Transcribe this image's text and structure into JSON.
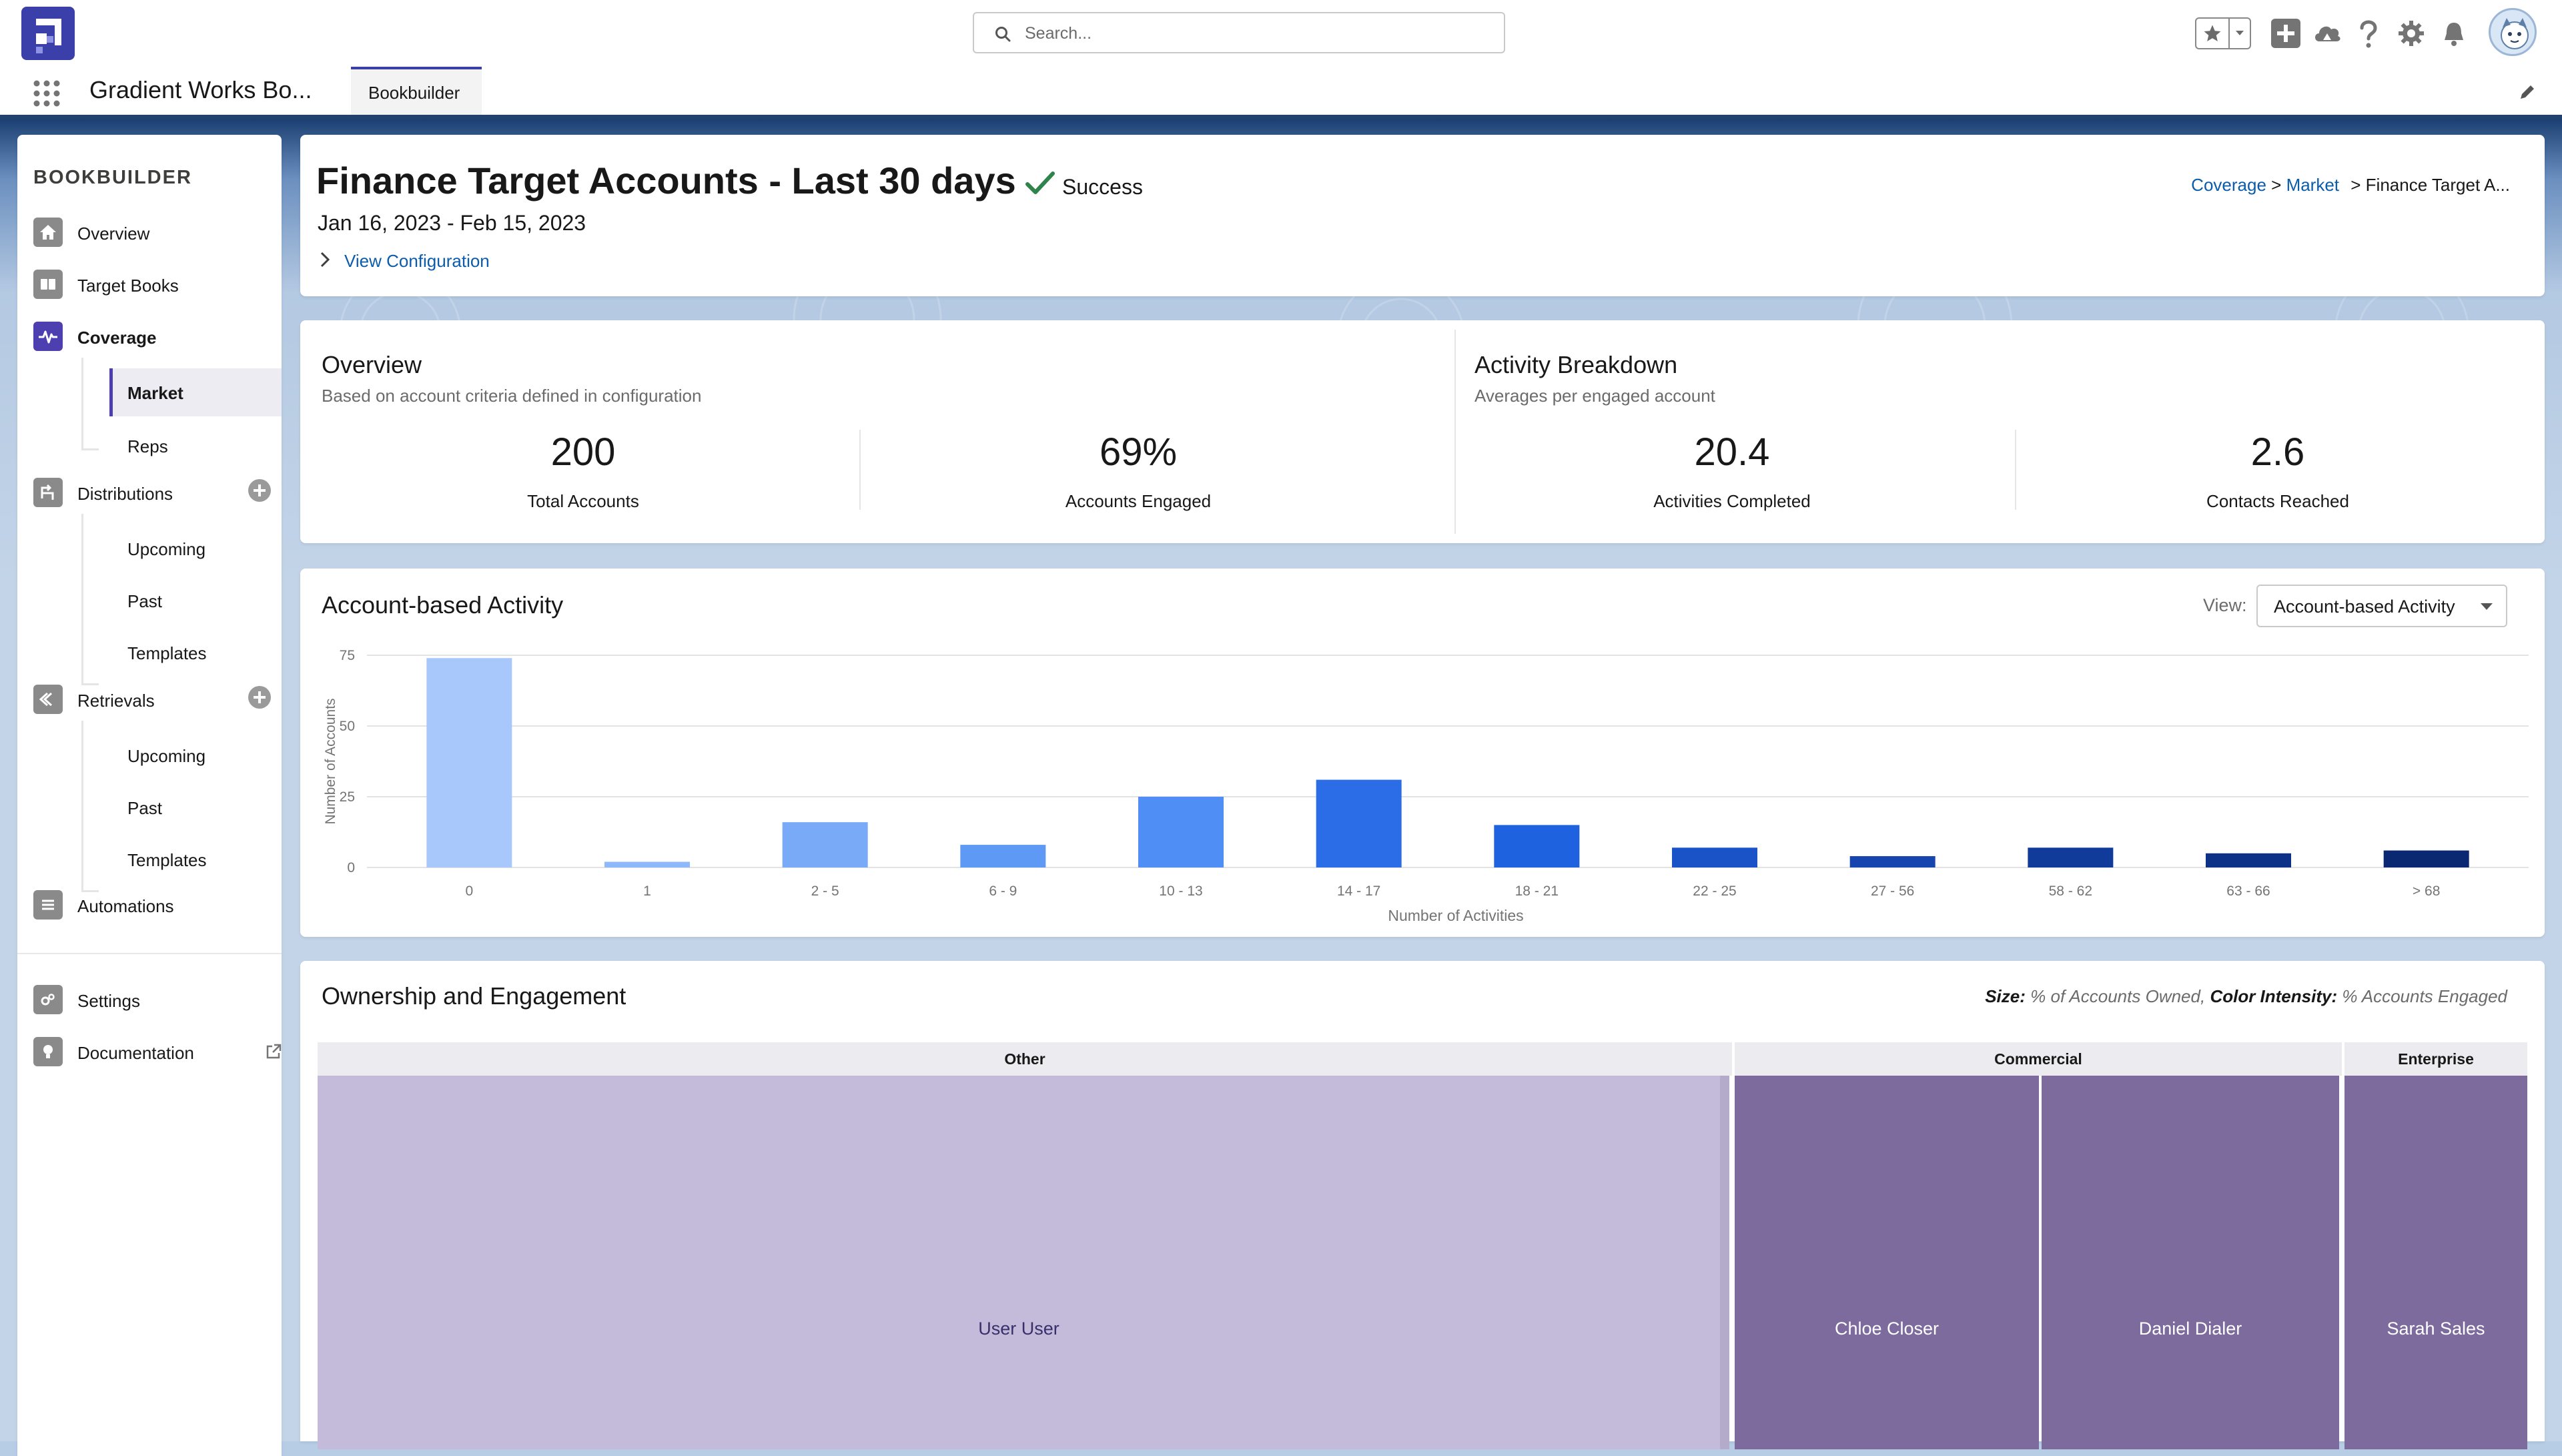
{
  "header": {
    "search_placeholder": "Search...",
    "app_name": "Gradient Works Bo...",
    "tab_label": "Bookbuilder"
  },
  "sidebar": {
    "title": "BOOKBUILDER",
    "items": [
      {
        "label": "Overview"
      },
      {
        "label": "Target Books"
      },
      {
        "label": "Coverage"
      },
      {
        "label": "Market"
      },
      {
        "label": "Reps"
      },
      {
        "label": "Distributions"
      },
      {
        "label": "Upcoming"
      },
      {
        "label": "Past"
      },
      {
        "label": "Templates"
      },
      {
        "label": "Retrievals"
      },
      {
        "label": "Upcoming"
      },
      {
        "label": "Past"
      },
      {
        "label": "Templates"
      },
      {
        "label": "Automations"
      },
      {
        "label": "Settings"
      },
      {
        "label": "Documentation"
      }
    ]
  },
  "page": {
    "title": "Finance Target Accounts - Last 30 days",
    "status": "Success",
    "date_range": "Jan 16, 2023 - Feb 15, 2023",
    "view_config": "View Configuration",
    "breadcrumb": {
      "level1": "Coverage",
      "sep1": ">",
      "level2": "Market",
      "current": "> Finance Target A..."
    }
  },
  "overview": {
    "title": "Overview",
    "subtitle": "Based on account criteria defined in configuration",
    "stats": [
      {
        "value": "200",
        "label": "Total Accounts"
      },
      {
        "value": "69%",
        "label": "Accounts Engaged"
      }
    ]
  },
  "breakdown": {
    "title": "Activity Breakdown",
    "subtitle": "Averages per engaged account",
    "stats": [
      {
        "value": "20.4",
        "label": "Activities Completed"
      },
      {
        "value": "2.6",
        "label": "Contacts Reached"
      }
    ]
  },
  "activity_card": {
    "title": "Account-based Activity",
    "view_label": "View:",
    "view_value": "Account-based Activity"
  },
  "chart_data": {
    "type": "bar",
    "xlabel": "Number of Activities",
    "ylabel": "Number of Accounts",
    "ylim": [
      0,
      75
    ],
    "yticks": [
      "75",
      "50",
      "25",
      "0"
    ],
    "categories": [
      "0",
      "1",
      "2 - 5",
      "6 - 9",
      "10 - 13",
      "14 - 17",
      "18 - 21",
      "22 - 25",
      "27 - 56",
      "58 - 62",
      "63 - 66",
      "> 68"
    ],
    "values": [
      74,
      2,
      16,
      8,
      25,
      31,
      15,
      7,
      4,
      7,
      5,
      6
    ],
    "colors": [
      "#a8c8fb",
      "#8db8f9",
      "#78aaf8",
      "#5e99f6",
      "#4f8ef5",
      "#2b6de6",
      "#1f62e0",
      "#1a52c7",
      "#1645b0",
      "#103b9a",
      "#0d3186",
      "#0a2872"
    ]
  },
  "ownership": {
    "title": "Ownership and Engagement",
    "legend_size_label": "Size:",
    "legend_size_text": "% of Accounts Owned,",
    "legend_color_label": "Color Intensity:",
    "legend_color_text": "% Accounts Engaged",
    "groups": [
      {
        "name": "Other",
        "owners": [
          "User User"
        ]
      },
      {
        "name": "Commercial",
        "owners": [
          "Chloe Closer",
          "Daniel Dialer"
        ]
      },
      {
        "name": "Enterprise",
        "owners": [
          "Sarah Sales"
        ]
      }
    ],
    "colors": {
      "light": "#c3bbd9",
      "dark": "#7d6b9e"
    }
  }
}
